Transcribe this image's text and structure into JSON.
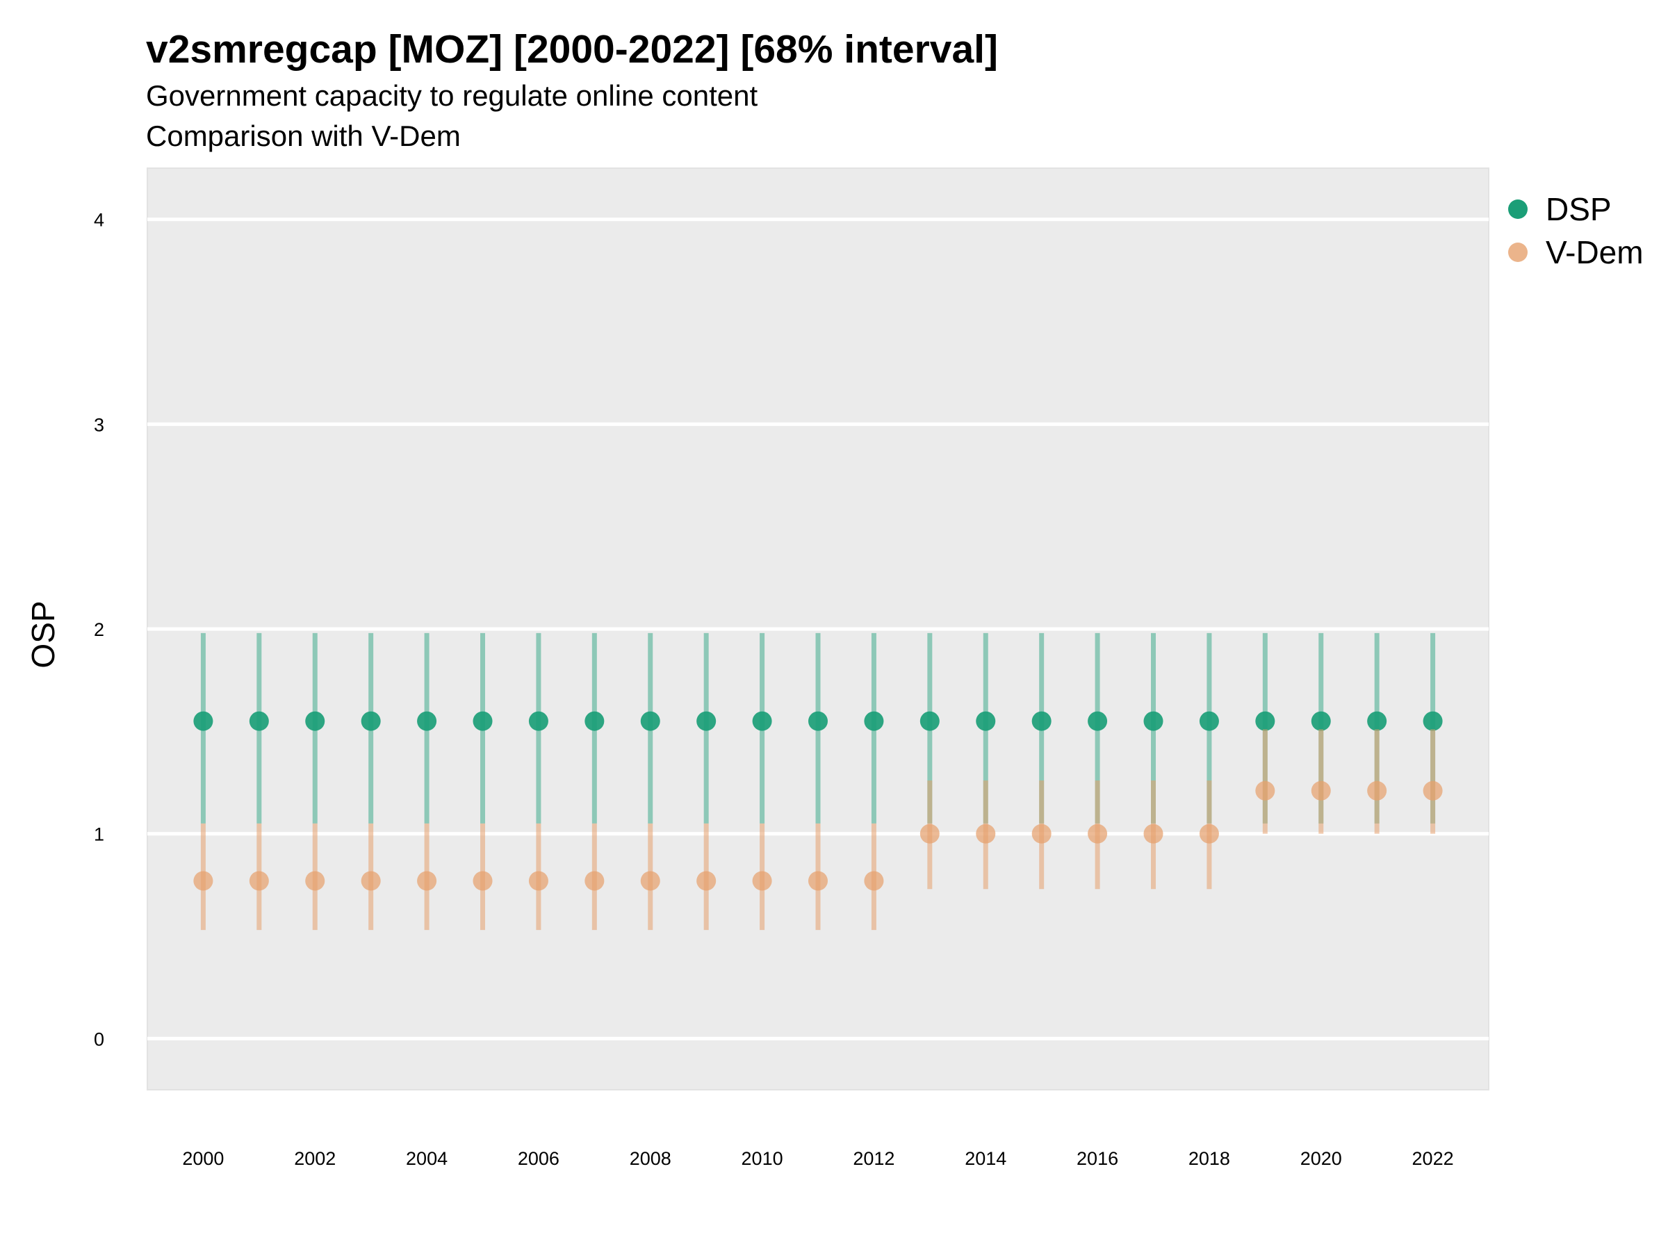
{
  "chart_data": {
    "type": "scatter",
    "title": "v2smregcap [MOZ] [2000-2022] [68% interval]",
    "subtitle": [
      "Government capacity to regulate online content",
      "Comparison with V-Dem"
    ],
    "xlabel": "",
    "ylabel": "OSP",
    "xlim": [
      1999,
      2023
    ],
    "ylim": [
      -0.25,
      4.25
    ],
    "x_ticks": [
      2000,
      2002,
      2004,
      2006,
      2008,
      2010,
      2012,
      2014,
      2016,
      2018,
      2020,
      2022
    ],
    "y_ticks": [
      0,
      1,
      2,
      3,
      4
    ],
    "grid": true,
    "legend_position": "right",
    "x": [
      2000,
      2001,
      2002,
      2003,
      2004,
      2005,
      2006,
      2007,
      2008,
      2009,
      2010,
      2011,
      2012,
      2013,
      2014,
      2015,
      2016,
      2017,
      2018,
      2019,
      2020,
      2021,
      2022
    ],
    "series": [
      {
        "name": "DSP",
        "color": "#1b9e77",
        "values": [
          1.55,
          1.55,
          1.55,
          1.55,
          1.55,
          1.55,
          1.55,
          1.55,
          1.55,
          1.55,
          1.55,
          1.55,
          1.55,
          1.55,
          1.55,
          1.55,
          1.55,
          1.55,
          1.55,
          1.55,
          1.55,
          1.55,
          1.55
        ],
        "lower": [
          1.05,
          1.05,
          1.05,
          1.05,
          1.05,
          1.05,
          1.05,
          1.05,
          1.05,
          1.05,
          1.05,
          1.05,
          1.05,
          1.05,
          1.05,
          1.05,
          1.05,
          1.05,
          1.05,
          1.05,
          1.05,
          1.05,
          1.05
        ],
        "upper": [
          1.98,
          1.98,
          1.98,
          1.98,
          1.98,
          1.98,
          1.98,
          1.98,
          1.98,
          1.98,
          1.98,
          1.98,
          1.98,
          1.98,
          1.98,
          1.98,
          1.98,
          1.98,
          1.98,
          1.98,
          1.98,
          1.98,
          1.98
        ]
      },
      {
        "name": "V-Dem",
        "color": "#e6a16e",
        "values": [
          0.77,
          0.77,
          0.77,
          0.77,
          0.77,
          0.77,
          0.77,
          0.77,
          0.77,
          0.77,
          0.77,
          0.77,
          0.77,
          1.0,
          1.0,
          1.0,
          1.0,
          1.0,
          1.0,
          1.21,
          1.21,
          1.21,
          1.21
        ],
        "lower": [
          0.53,
          0.53,
          0.53,
          0.53,
          0.53,
          0.53,
          0.53,
          0.53,
          0.53,
          0.53,
          0.53,
          0.53,
          0.53,
          0.73,
          0.73,
          0.73,
          0.73,
          0.73,
          0.73,
          1.0,
          1.0,
          1.0,
          1.0
        ],
        "upper": [
          1.05,
          1.05,
          1.05,
          1.05,
          1.05,
          1.05,
          1.05,
          1.05,
          1.05,
          1.05,
          1.05,
          1.05,
          1.05,
          1.26,
          1.26,
          1.26,
          1.26,
          1.26,
          1.26,
          1.51,
          1.51,
          1.51,
          1.51
        ]
      }
    ]
  }
}
